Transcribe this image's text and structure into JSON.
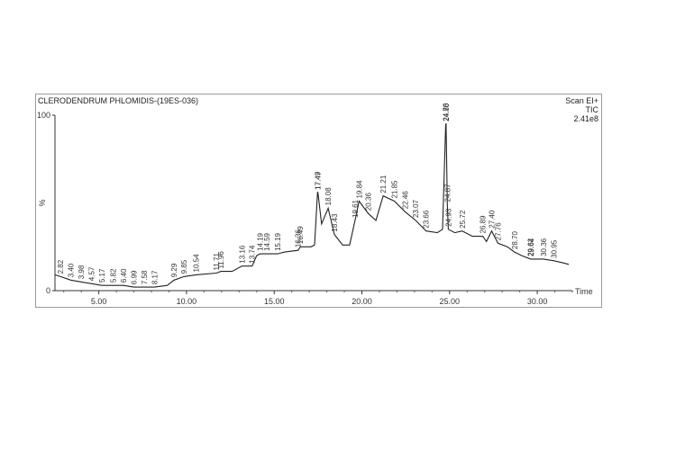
{
  "header": {
    "sample_name": "CLERODENDRUM PHLOMIDIS-(19ES-036)",
    "scan_mode": "Scan  EI+",
    "signal": "TIC",
    "intensity": "2.41e8"
  },
  "chart_data": {
    "type": "line",
    "title": "CLERODENDRUM PHLOMIDIS-(19ES-036)",
    "xlabel": "Time",
    "ylabel": "%",
    "xlim": [
      2.5,
      32.0
    ],
    "ylim": [
      0,
      100
    ],
    "x_ticks": [
      5.0,
      10.0,
      15.0,
      20.0,
      25.0,
      30.0
    ],
    "x_tick_labels": [
      "5.00",
      "10.00",
      "15.00",
      "20.00",
      "25.00",
      "30.00"
    ],
    "y_ticks": [
      0,
      100
    ],
    "y_tick_labels": [
      "0",
      "100"
    ],
    "grid": false,
    "series": [
      {
        "points": [
          [
            2.5,
            9
          ],
          [
            2.82,
            8
          ],
          [
            3.4,
            6
          ],
          [
            3.98,
            5
          ],
          [
            4.57,
            4
          ],
          [
            5.17,
            3
          ],
          [
            5.82,
            3
          ],
          [
            6.4,
            3
          ],
          [
            6.99,
            2
          ],
          [
            7.58,
            2
          ],
          [
            8.17,
            2
          ],
          [
            8.9,
            3
          ],
          [
            9.29,
            6
          ],
          [
            9.85,
            8
          ],
          [
            10.54,
            9
          ],
          [
            11.71,
            10
          ],
          [
            11.96,
            11
          ],
          [
            12.6,
            11
          ],
          [
            13.16,
            14
          ],
          [
            13.74,
            14
          ],
          [
            14.0,
            20
          ],
          [
            14.19,
            21
          ],
          [
            14.59,
            21
          ],
          [
            15.19,
            21
          ],
          [
            15.6,
            22
          ],
          [
            16.36,
            23
          ],
          [
            16.49,
            25
          ],
          [
            17.1,
            25
          ],
          [
            17.3,
            26
          ],
          [
            17.47,
            56
          ],
          [
            17.49,
            56
          ],
          [
            17.7,
            38
          ],
          [
            18.08,
            47
          ],
          [
            18.43,
            32
          ],
          [
            18.9,
            26
          ],
          [
            19.3,
            26
          ],
          [
            19.61,
            40
          ],
          [
            19.84,
            51
          ],
          [
            20.36,
            44
          ],
          [
            20.8,
            40
          ],
          [
            21.21,
            54
          ],
          [
            21.85,
            51
          ],
          [
            22.46,
            45
          ],
          [
            23.07,
            40
          ],
          [
            23.66,
            34
          ],
          [
            24.3,
            33
          ],
          [
            24.6,
            35
          ],
          [
            24.78,
            95
          ],
          [
            24.8,
            95
          ],
          [
            24.87,
            49
          ],
          [
            24.93,
            35
          ],
          [
            25.3,
            33
          ],
          [
            25.72,
            34
          ],
          [
            26.3,
            31
          ],
          [
            26.89,
            31
          ],
          [
            27.1,
            28
          ],
          [
            27.4,
            34
          ],
          [
            27.76,
            27
          ],
          [
            28.3,
            25
          ],
          [
            28.7,
            22
          ],
          [
            29.1,
            20
          ],
          [
            29.62,
            18
          ],
          [
            29.64,
            18
          ],
          [
            30.36,
            18
          ],
          [
            30.95,
            17
          ],
          [
            31.4,
            16
          ],
          [
            31.8,
            15
          ]
        ]
      }
    ],
    "peak_labels": [
      {
        "x": 2.82,
        "y": 8,
        "text": "2.82"
      },
      {
        "x": 3.4,
        "y": 6,
        "text": "3.40"
      },
      {
        "x": 3.98,
        "y": 5,
        "text": "3.98"
      },
      {
        "x": 4.57,
        "y": 4,
        "text": "4.57"
      },
      {
        "x": 5.17,
        "y": 3,
        "text": "5.17"
      },
      {
        "x": 5.82,
        "y": 3,
        "text": "5.82"
      },
      {
        "x": 6.4,
        "y": 3,
        "text": "6.40"
      },
      {
        "x": 6.99,
        "y": 2,
        "text": "6.99"
      },
      {
        "x": 7.58,
        "y": 2,
        "text": "7.58"
      },
      {
        "x": 8.17,
        "y": 2,
        "text": "8.17"
      },
      {
        "x": 9.29,
        "y": 6,
        "text": "9.29"
      },
      {
        "x": 9.85,
        "y": 8,
        "text": "9.85"
      },
      {
        "x": 10.54,
        "y": 9,
        "text": "10.54"
      },
      {
        "x": 11.71,
        "y": 10,
        "text": "11.71"
      },
      {
        "x": 11.96,
        "y": 11,
        "text": "11.96"
      },
      {
        "x": 13.16,
        "y": 14,
        "text": "13.16"
      },
      {
        "x": 13.74,
        "y": 14,
        "text": "13.74"
      },
      {
        "x": 14.19,
        "y": 21,
        "text": "14.19"
      },
      {
        "x": 14.59,
        "y": 21,
        "text": "14.59"
      },
      {
        "x": 15.19,
        "y": 21,
        "text": "15.19"
      },
      {
        "x": 16.36,
        "y": 23,
        "text": "16.36"
      },
      {
        "x": 16.49,
        "y": 25,
        "text": "16.49"
      },
      {
        "x": 17.47,
        "y": 56,
        "text": "17.47"
      },
      {
        "x": 17.49,
        "y": 56,
        "text": "17.49"
      },
      {
        "x": 18.08,
        "y": 47,
        "text": "18.08"
      },
      {
        "x": 18.43,
        "y": 32,
        "text": "18.43"
      },
      {
        "x": 19.61,
        "y": 40,
        "text": "19.61"
      },
      {
        "x": 19.84,
        "y": 51,
        "text": "19.84"
      },
      {
        "x": 20.36,
        "y": 44,
        "text": "20.36"
      },
      {
        "x": 21.21,
        "y": 54,
        "text": "21.21"
      },
      {
        "x": 21.85,
        "y": 51,
        "text": "21.85"
      },
      {
        "x": 22.46,
        "y": 45,
        "text": "22.46"
      },
      {
        "x": 23.07,
        "y": 40,
        "text": "23.07"
      },
      {
        "x": 23.66,
        "y": 34,
        "text": "23.66"
      },
      {
        "x": 24.78,
        "y": 95,
        "text": "24.78"
      },
      {
        "x": 24.8,
        "y": 95,
        "text": "24.80"
      },
      {
        "x": 24.87,
        "y": 49,
        "text": "24.87"
      },
      {
        "x": 24.93,
        "y": 35,
        "text": "24.93"
      },
      {
        "x": 25.72,
        "y": 34,
        "text": "25.72"
      },
      {
        "x": 26.89,
        "y": 31,
        "text": "26.89"
      },
      {
        "x": 27.4,
        "y": 34,
        "text": "27.40"
      },
      {
        "x": 27.76,
        "y": 27,
        "text": "27.76"
      },
      {
        "x": 28.7,
        "y": 22,
        "text": "28.70"
      },
      {
        "x": 29.62,
        "y": 18,
        "text": "29.62"
      },
      {
        "x": 29.64,
        "y": 18,
        "text": "29.64"
      },
      {
        "x": 30.36,
        "y": 18,
        "text": "30.36"
      },
      {
        "x": 30.95,
        "y": 17,
        "text": "30.95"
      }
    ]
  }
}
